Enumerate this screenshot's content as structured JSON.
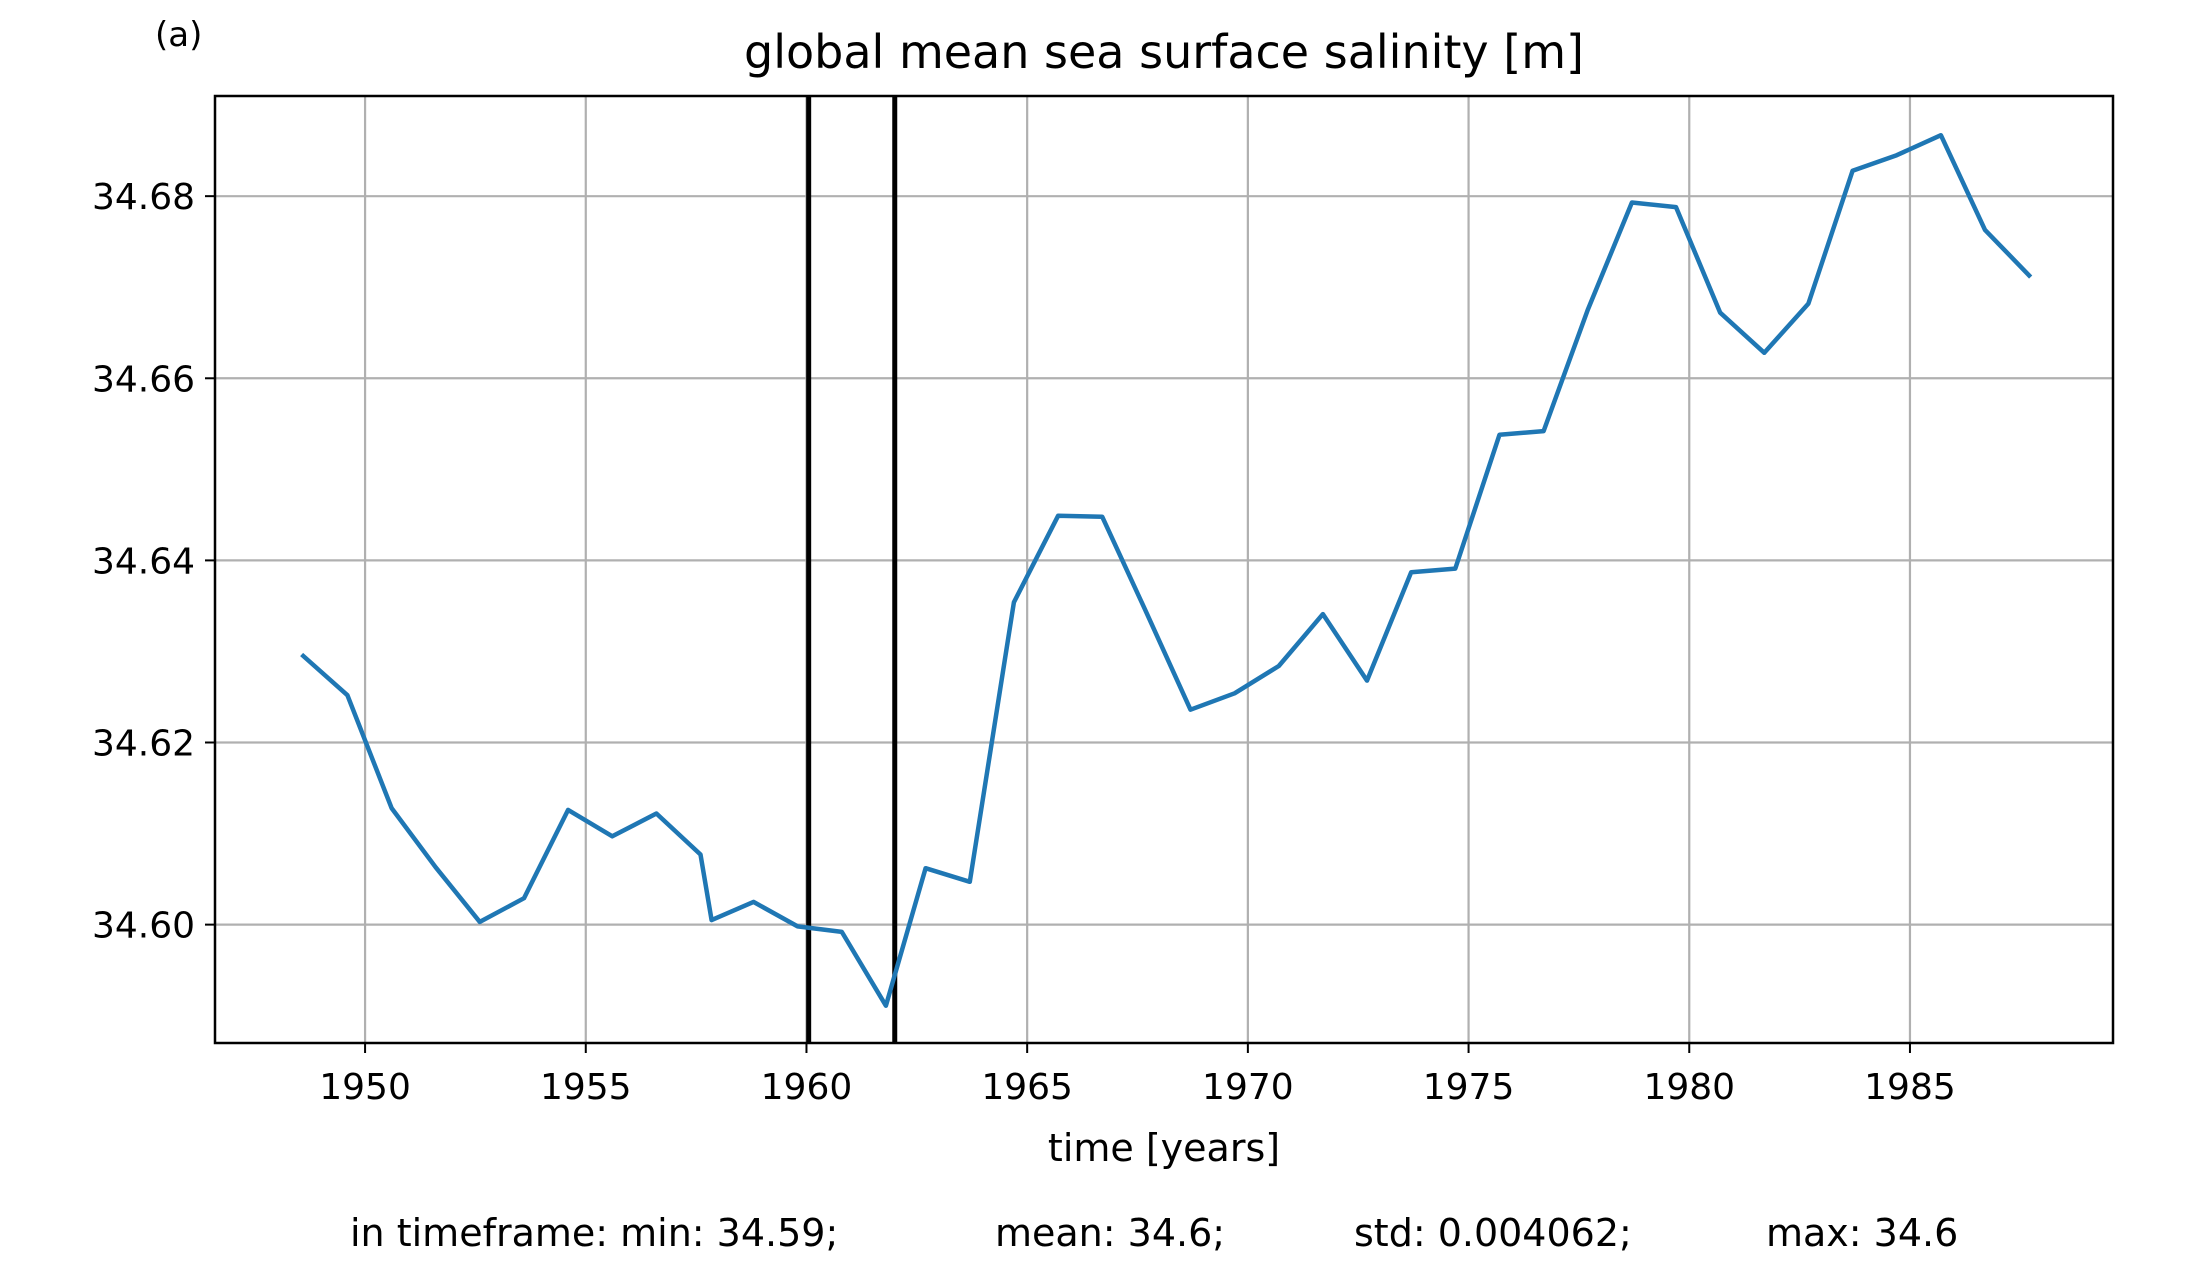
{
  "chart_data": {
    "type": "line",
    "panel_label": "(a)",
    "title": "global mean sea surface salinity [m]",
    "xlabel": "time [years]",
    "ylabel": "",
    "xlim": [
      1946.6,
      1989.6
    ],
    "ylim": [
      34.587,
      34.691
    ],
    "xticks": [
      1950,
      1955,
      1960,
      1965,
      1970,
      1975,
      1980,
      1985
    ],
    "yticks": [
      34.6,
      34.62,
      34.64,
      34.66,
      34.68
    ],
    "xtick_labels": [
      "1950",
      "1955",
      "1960",
      "1965",
      "1970",
      "1975",
      "1980",
      "1985"
    ],
    "ytick_labels": [
      "34.60",
      "34.62",
      "34.64",
      "34.66",
      "34.68"
    ],
    "grid": true,
    "line_color": "#1f77b4",
    "series": [
      {
        "x": [
          1948.6,
          1949.6,
          1950.6,
          1951.6,
          1952.6,
          1953.6,
          1954.6,
          1955.6,
          1956.6,
          1957.6,
          1957.85,
          1958.8,
          1959.8,
          1960.8,
          1961.8,
          1962.7,
          1963.7,
          1964.7,
          1965.7,
          1966.7,
          1967.7,
          1968.7,
          1969.7,
          1970.7,
          1971.7,
          1972.7,
          1973.7,
          1974.7,
          1975.7,
          1976.7,
          1977.7,
          1978.7,
          1979.7,
          1980.7,
          1981.7,
          1982.7,
          1983.7,
          1984.7,
          1985.7,
          1986.7,
          1987.7
        ],
        "y": [
          34.6295,
          34.6252,
          34.6128,
          34.6063,
          34.6003,
          34.6029,
          34.6126,
          34.6097,
          34.6122,
          34.6077,
          34.6005,
          34.6025,
          34.5998,
          34.5992,
          34.5911,
          34.6062,
          34.6047,
          34.6354,
          34.6449,
          34.6448,
          34.6343,
          34.6236,
          34.6254,
          34.6284,
          34.6341,
          34.6268,
          34.6387,
          34.6391,
          34.6538,
          34.6542,
          34.6675,
          34.6793,
          34.6788,
          34.6672,
          34.6628,
          34.6682,
          34.6828,
          34.6845,
          34.6867,
          34.6763,
          34.6713
        ]
      }
    ],
    "vertical_lines": [
      1960.05,
      1962.0
    ],
    "vertical_line_color": "#000000"
  },
  "footer": {
    "min": "in timeframe: min: 34.59;",
    "mean": "mean: 34.6;",
    "std": "std: 0.004062;",
    "max": "max: 34.6"
  }
}
